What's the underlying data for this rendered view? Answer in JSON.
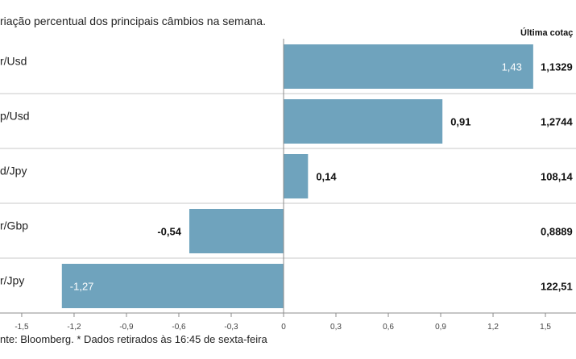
{
  "chart_data": {
    "type": "bar",
    "orientation": "horizontal",
    "title": "riação percentual dos principais câmbios na semana.",
    "column_header": "Última cotaç",
    "categories": [
      "r/Usd",
      "p/Usd",
      "d/Jpy",
      "r/Gbp",
      "r/Jpy"
    ],
    "values": [
      1.43,
      0.91,
      0.14,
      -0.54,
      -1.27
    ],
    "value_labels": [
      "1,43",
      "0,91",
      "0,14",
      "-0,54",
      "-1,27"
    ],
    "last_quotes": [
      "1,1329",
      "1,2744",
      "108,14",
      "0,8889",
      "122,51"
    ],
    "xlim": [
      -1.6,
      1.6
    ],
    "x_ticks": [
      -1.5,
      -1.2,
      -0.9,
      -0.6,
      -0.3,
      0,
      0.3,
      0.6,
      0.9,
      1.2,
      1.5
    ],
    "x_tick_labels": [
      "-1,5",
      "-1,2",
      "-0,9",
      "-0,6",
      "-0,3",
      "0",
      "0,3",
      "0,6",
      "0,9",
      "1,2",
      "1,5"
    ],
    "source": "nte: Bloomberg.  * Dados retirados às 16:45 de sexta-feira",
    "bar_color": "#6fa3bd",
    "grid": false
  }
}
